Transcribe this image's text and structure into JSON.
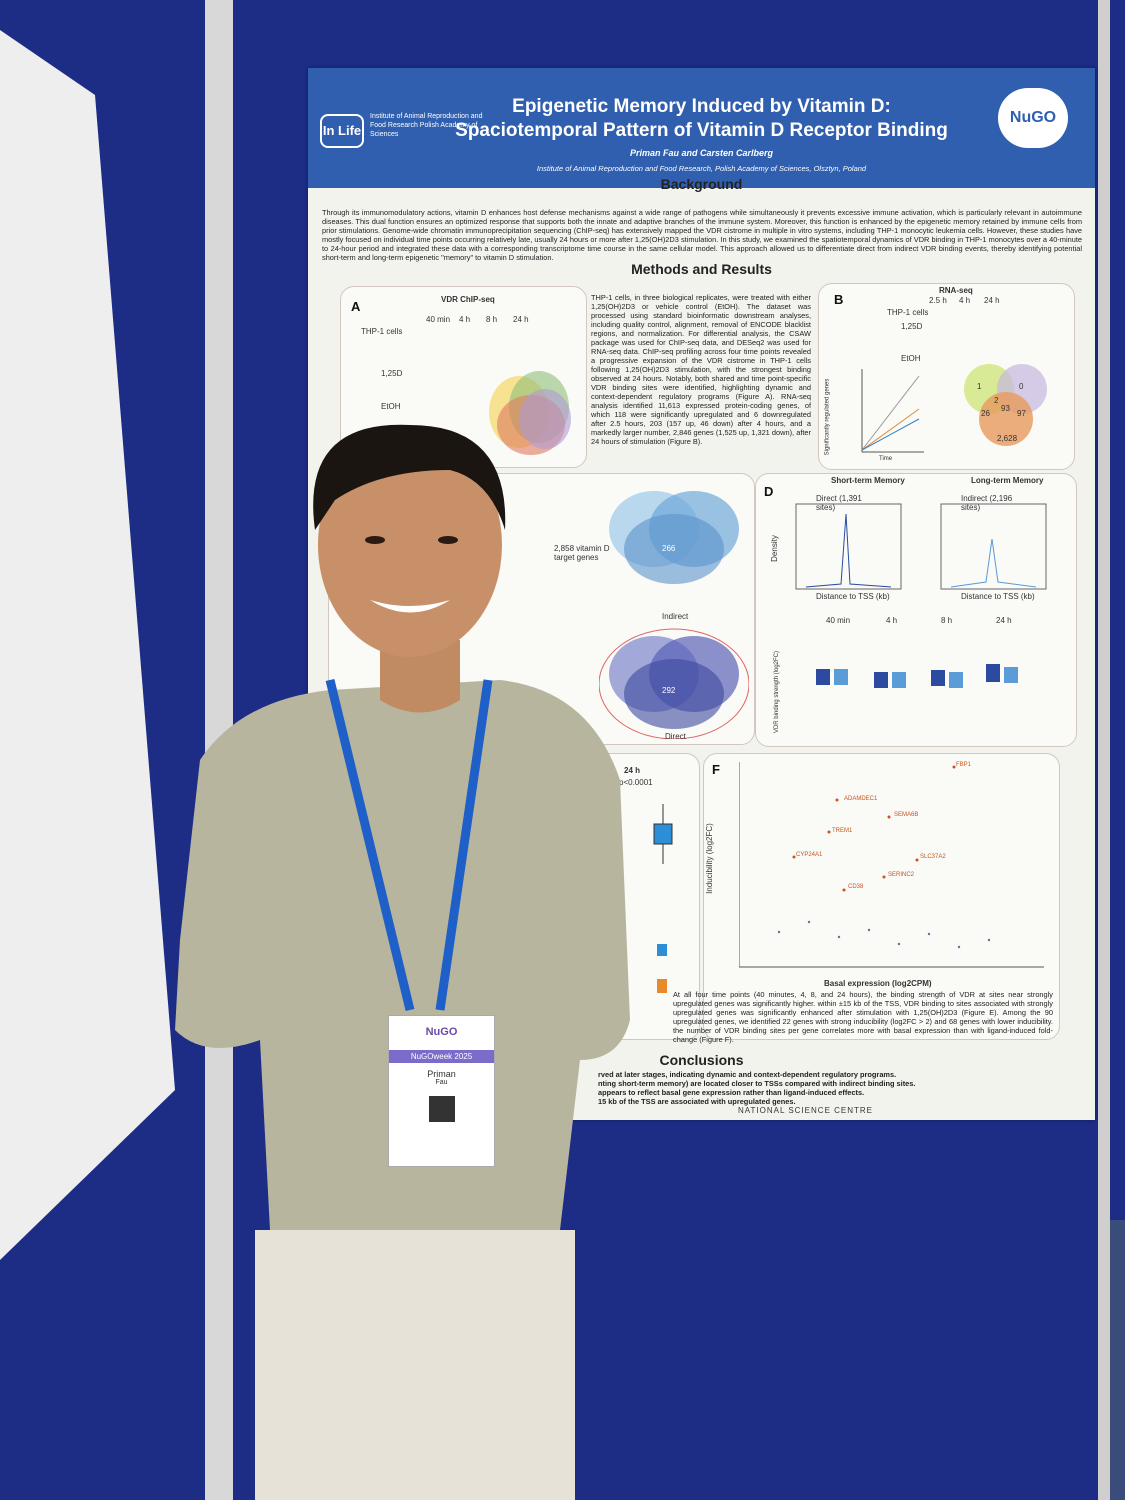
{
  "poster": {
    "title_line1": "Epigenetic Memory Induced by Vitamin D:",
    "title_line2": "Spaciotemporal Pattern of Vitamin D Receptor Binding",
    "authors": "Priman Fau and Carsten Carlberg",
    "affiliation": "Institute of Animal Reproduction and Food Research, Polish Academy of Sciences, Olsztyn, Poland",
    "logo_left": "In Life",
    "logo_left_text": "Institute of Animal Reproduction and Food Research Polish Academy of Sciences",
    "logo_right": "NuGO",
    "sections": [
      "Background",
      "Methods and Results",
      "Conclusions"
    ],
    "background_text": "Through its immunomodulatory actions, vitamin D enhances host defense mechanisms against a wide range of pathogens while simultaneously it prevents excessive immune activation, which is particularly relevant in autoimmune diseases. This dual function ensures an optimized response that supports both the innate and adaptive branches of the immune system. Moreover, this function is enhanced by the epigenetic memory retained by immune cells from prior stimulations. Genome-wide chromatin immunoprecipitation sequencing (ChIP-seq) has extensively mapped the VDR cistrome in multiple in vitro systems, including THP-1 monocytic leukemia cells. However, these studies have mostly focused on individual time points occurring relatively late, usually 24 hours or more after 1,25(OH)2D3 stimulation. In this study, we examined the spatiotemporal dynamics of VDR binding in THP-1 monocytes over a 40-minute to 24-hour period and integrated these data with a corresponding transcriptome time course in the same cellular model. This approach allowed us to differentiate direct from indirect VDR binding events, thereby identifying potential short-term and long-term epigenetic \"memory\" to vitamin D stimulation.",
    "methods_text": "THP-1 cells, in three biological replicates, were treated with either 1,25(OH)2D3 or vehicle control (EtOH). The dataset was processed using standard bioinformatic downstream analyses, including quality control, alignment, removal of ENCODE blacklist regions, and normalization. For differential analysis, the CSAW package was used for ChIP-seq data, and DESeq2 was used for RNA-seq data. ChIP-seq profiling across four time points revealed a progressive expansion of the VDR cistrome in THP-1 cells following 1,25(OH)2D3 stimulation, with the strongest binding observed at 24 hours. Notably, both shared and time point-specific VDR binding sites were identified, highlighting dynamic and context-dependent regulatory programs (Figure A). RNA-seq analysis identified 11,613 expressed protein-coding genes, of which 118 were significantly upregulated and 6 downregulated after 2.5 hours, 203 (157 up, 46 down) after 4 hours, and a markedly larger number, 2,846 genes (1,525 up, 1,321 down), after 24 hours of stimulation (Figure B).",
    "results_text": "At all four time points (40 minutes, 4, 8, and 24 hours), the binding strength of VDR at sites near strongly upregulated genes was significantly higher. within ±15 kb of the TSS, VDR binding to sites associated with strongly upregulated genes was significantly enhanced after stimulation with 1,25(OH)2D3 (Figure E). Among the 90 upregulated genes, we identified 22 genes with strong inducibility (log2FC > 2) and 68 genes with lower inducibility. the number of VDR binding sites per gene correlates more with basal expression than with ligand-induced fold-change (Figure F).",
    "conclusions": [
      "rved at later stages, indicating dynamic and context-dependent regulatory programs.",
      "nting short-term memory) are located closer to TSSs compared with indirect binding sites.",
      "appears to reflect basal gene expression rather than ligand-induced effects.",
      "15 kb of the TSS are associated with upregulated genes."
    ],
    "panel_a": {
      "label": "A",
      "title": "VDR ChIP-seq",
      "cells": "THP-1 cells",
      "times": [
        "40 min",
        "4 h",
        "8 h",
        "24 h"
      ],
      "treatment": "1,25D",
      "control": "EtOH"
    },
    "panel_b": {
      "label": "B",
      "title": "RNA-seq",
      "cells": "THP-1 cells",
      "times": [
        "2.5 h",
        "4 h",
        "24 h"
      ],
      "treatment": "1,25D",
      "control": "EtOH",
      "venn": [
        "1",
        "2",
        "0",
        "26",
        "93",
        "97",
        "2,628"
      ],
      "y_label": "Significantly regulated genes",
      "x_label": "Time"
    },
    "panel_c": {
      "title": "Indirect",
      "direct": "Direct",
      "target": "2,858 vitamin D target genes",
      "venn_center": "266",
      "venn_indirect_center": "292"
    },
    "panel_d": {
      "label": "D",
      "short": "Short-term Memory",
      "long": "Long-term Memory",
      "direct": "Direct (1,391 sites)",
      "indirect": "Indirect (2,196 sites)",
      "x_label": "Distance to TSS (kb)",
      "y_label": "Density",
      "box_times": [
        "40 min",
        "4 h",
        "8 h",
        "24 h"
      ],
      "box_y_label": "VDR binding strength (log2FC)"
    },
    "panel_e": {
      "time": "24 h",
      "p": "p<0.0001"
    },
    "panel_f": {
      "label": "F",
      "x_label": "Basal expression (log2CPM)",
      "y_label": "Inducibility (log2FC)",
      "genes": [
        "FBP1",
        "ADAMDEC1",
        "SEMA6B",
        "TREM1",
        "CYP24A1",
        "SLC37A2",
        "SERINC2",
        "CD38"
      ]
    },
    "footer": "NATIONAL SCIENCE CENTRE"
  },
  "badge": {
    "logo": "NuGO",
    "event": "NuGOweek 2025",
    "name": "Priman",
    "surname": "Fau"
  }
}
